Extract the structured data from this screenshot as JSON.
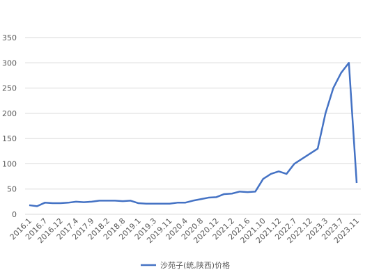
{
  "chart_data": {
    "type": "line",
    "categories": [
      "2016.1",
      null,
      "2016.7",
      null,
      "2016.12",
      null,
      "2017.4",
      null,
      "2017.9",
      null,
      "2018.2",
      null,
      "2018.8",
      null,
      "2019.1",
      null,
      "2019.3",
      null,
      "2019.11",
      null,
      "2020.4",
      null,
      "2020.8",
      null,
      "2020.12",
      null,
      "2021.2",
      null,
      "2021.6",
      null,
      "2021.10",
      null,
      "2021.12",
      null,
      "2022.7",
      null,
      "2022.12",
      null,
      "2023.3",
      null,
      "2023.7",
      null,
      "2023.11"
    ],
    "series": [
      {
        "name": "沙苑子(统,陕西)价格",
        "color": "#4472c4",
        "values": [
          18,
          16,
          23,
          22,
          22,
          23,
          25,
          24,
          25,
          27,
          27,
          27,
          26,
          27,
          22,
          21,
          21,
          21,
          21,
          23,
          23,
          27,
          30,
          33,
          34,
          40,
          41,
          45,
          44,
          45,
          70,
          80,
          85,
          80,
          100,
          110,
          120,
          130,
          200,
          250,
          280,
          300,
          62
        ]
      }
    ],
    "ylim": [
      0,
      350
    ],
    "yticks": [
      0,
      50,
      100,
      150,
      200,
      250,
      300,
      350
    ],
    "grid": true,
    "legend": "bottom"
  }
}
